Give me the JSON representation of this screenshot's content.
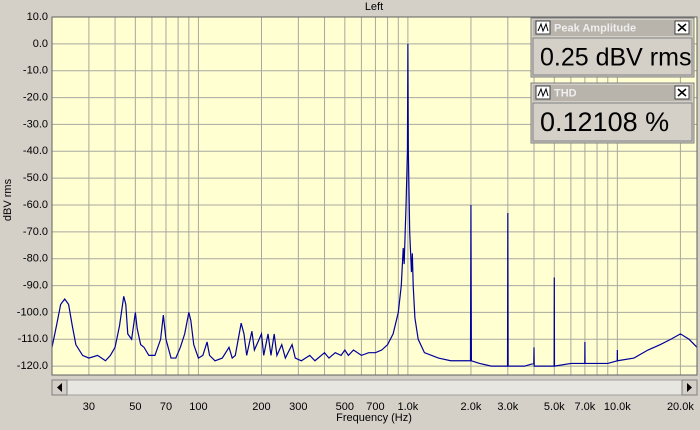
{
  "chart_data": {
    "type": "line",
    "title": "Left",
    "xlabel": "Frequency (Hz)",
    "ylabel": "dBV rms",
    "xscale": "log",
    "grid": true,
    "color": "#00009c",
    "xlim": [
      20,
      24000
    ],
    "ylim": [
      -123.3,
      10
    ],
    "yticks": [
      {
        "value": 10,
        "label": "10.0"
      },
      {
        "value": 0,
        "label": "0.0"
      },
      {
        "value": -10,
        "label": "-10.0"
      },
      {
        "value": -20,
        "label": "-20.0"
      },
      {
        "value": -30,
        "label": "-30.0"
      },
      {
        "value": -40,
        "label": "-40.0"
      },
      {
        "value": -50,
        "label": "-50.0"
      },
      {
        "value": -60,
        "label": "-60.0"
      },
      {
        "value": -70,
        "label": "-70.0"
      },
      {
        "value": -80,
        "label": "-80.0"
      },
      {
        "value": -90,
        "label": "-90.0"
      },
      {
        "value": -100,
        "label": "-100.0"
      },
      {
        "value": -110,
        "label": "-110.0"
      },
      {
        "value": -120,
        "label": "-120.0"
      }
    ],
    "xticks": [
      30,
      50,
      70,
      100,
      200,
      300,
      500,
      700,
      {
        "value": 1000,
        "label": "1.0k"
      },
      {
        "value": 2000,
        "label": "2.0k"
      },
      {
        "value": 3000,
        "label": "3.0k"
      },
      {
        "value": 5000,
        "label": "5.0k"
      },
      {
        "value": 7000,
        "label": "7.0k"
      },
      {
        "value": 10000,
        "label": "10.0k"
      },
      {
        "value": 20000,
        "label": "20.0k"
      }
    ],
    "xminor": [
      40,
      60,
      80,
      90,
      400,
      600,
      800,
      900,
      4000,
      6000,
      8000,
      9000
    ],
    "x": [
      20,
      21,
      22,
      23,
      24,
      25,
      26,
      28,
      30,
      33,
      36,
      38,
      40,
      42,
      44,
      45,
      46,
      48,
      50,
      51,
      53,
      55,
      58,
      62,
      66,
      68,
      70,
      74,
      78,
      82,
      86,
      90,
      92,
      95,
      100,
      105,
      110,
      113,
      120,
      130,
      140,
      145,
      150,
      160,
      165,
      170,
      180,
      185,
      195,
      200,
      205,
      215,
      222,
      230,
      237,
      250,
      260,
      280,
      290,
      310,
      340,
      360,
      400,
      420,
      450,
      480,
      500,
      520,
      550,
      600,
      650,
      700,
      750,
      800,
      850,
      900,
      930,
      950,
      960,
      980,
      995,
      1000,
      1005,
      1020,
      1040,
      1050,
      1060,
      1080,
      1120,
      1200,
      1400,
      1600,
      1800,
      1990,
      2000,
      2010,
      2200,
      2500,
      2800,
      2990,
      3000,
      3010,
      3300,
      3600,
      3990,
      4000,
      4010,
      4500,
      4990,
      5000,
      5010,
      6000,
      6990,
      7000,
      7010,
      8000,
      9000,
      9990,
      10000,
      10010,
      12000,
      14000,
      16000,
      18000,
      20000,
      22000,
      24000
    ],
    "values": [
      -113,
      -105,
      -97,
      -95,
      -97,
      -105,
      -112,
      -116,
      -117,
      -116,
      -118,
      -116,
      -113,
      -105,
      -94,
      -97,
      -108,
      -110,
      -100,
      -106,
      -112,
      -113,
      -116,
      -116,
      -110,
      -101,
      -110,
      -117,
      -117,
      -113,
      -108,
      -100,
      -103,
      -112,
      -117,
      -116,
      -111,
      -116,
      -118,
      -117,
      -113,
      -117,
      -116,
      -104,
      -108,
      -116,
      -107,
      -114,
      -110,
      -108,
      -116,
      -108,
      -116,
      -108,
      -116,
      -112,
      -117,
      -112,
      -117,
      -118,
      -116,
      -118,
      -115,
      -117,
      -115,
      -116,
      -114,
      -116,
      -114,
      -116,
      -115,
      -115,
      -114,
      -112,
      -108,
      -100,
      -90,
      -76,
      -82,
      -60,
      -40,
      0,
      -40,
      -70,
      -85,
      -78,
      -90,
      -102,
      -110,
      -115,
      -117,
      -118,
      -118,
      -118,
      -60,
      -118,
      -119,
      -120,
      -120,
      -120,
      -63,
      -120,
      -120,
      -120,
      -119,
      -113,
      -120,
      -120,
      -120,
      -87,
      -120,
      -119,
      -119,
      -111,
      -119,
      -119,
      -119,
      -118,
      -114,
      -118,
      -117,
      -114,
      -112,
      -110,
      -108,
      -110,
      -113
    ]
  },
  "widgets": [
    {
      "title": "Peak Amplitude",
      "value": "0.25 dBV rms"
    },
    {
      "title": "THD",
      "value": "0.12108 %"
    }
  ]
}
